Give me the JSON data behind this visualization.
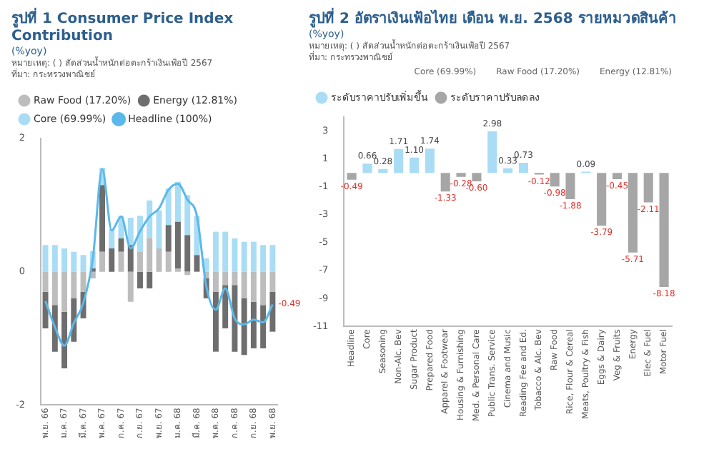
{
  "chart_data": [
    {
      "type": "bar",
      "title": "รูปที่ 1 Consumer Price Index Contribution",
      "subtitle": "(%yoy)",
      "annotations": [
        "หมายเหตุ: ( ) สัดส่วนน้ำหนักต่อตะกร้าเงินเฟ้อปี 2567",
        "ที่มา: กระทรวงพาณิชย์"
      ],
      "categories": [
        "พ.ย. 66",
        null,
        "ม.ค. 67",
        null,
        "มี.ค. 67",
        null,
        "พ.ค. 67",
        null,
        "ก.ค. 67",
        null,
        "ก.ย. 67",
        null,
        "พ.ย. 67",
        null,
        "ม.ค. 68",
        null,
        "มี.ค. 68",
        null,
        "พ.ค. 68",
        null,
        "ก.ค. 68",
        null,
        "ก.ย. 68",
        null,
        "พ.ย. 68"
      ],
      "stacked": true,
      "legend": "top",
      "ylim": [
        -2,
        2
      ],
      "yticks": [
        -2,
        0,
        2
      ],
      "series": [
        {
          "name": "Raw Food (17.20%)",
          "color": "#bdbdbd",
          "values": [
            -0.3,
            -0.5,
            -0.6,
            -0.4,
            -0.3,
            -0.1,
            0.3,
            0.0,
            0.3,
            -0.45,
            0.3,
            0.5,
            0.35,
            0.3,
            0.05,
            -0.05,
            0.0,
            -0.1,
            -0.3,
            -0.2,
            -0.2,
            -0.4,
            -0.45,
            -0.5,
            -0.3
          ]
        },
        {
          "name": "Energy (12.81%)",
          "color": "#6e6e6e",
          "values": [
            -0.55,
            -0.7,
            -0.85,
            -0.65,
            -0.4,
            0.05,
            1.0,
            0.35,
            0.2,
            0.4,
            -0.25,
            -0.25,
            0.0,
            0.4,
            0.7,
            0.55,
            0.25,
            -0.3,
            -0.9,
            -0.65,
            -1.0,
            -0.85,
            -0.7,
            -0.65,
            -0.6
          ]
        },
        {
          "name": "Core (69.99%)",
          "color": "#a9dcf5",
          "values": [
            0.4,
            0.4,
            0.35,
            0.3,
            0.25,
            0.26,
            0.26,
            0.29,
            0.34,
            0.41,
            0.54,
            0.57,
            0.57,
            0.55,
            0.6,
            0.6,
            0.59,
            0.2,
            0.6,
            0.6,
            0.5,
            0.45,
            0.45,
            0.4,
            0.4
          ]
        },
        {
          "name": "Headline (100%)",
          "type": "line",
          "color": "#5bb8ea",
          "values": [
            -0.44,
            -0.83,
            -1.11,
            -0.77,
            -0.47,
            0.19,
            1.54,
            0.62,
            0.83,
            0.35,
            0.61,
            0.83,
            0.95,
            1.23,
            1.32,
            1.08,
            0.84,
            -0.22,
            -0.57,
            -0.25,
            -0.7,
            -0.79,
            -0.72,
            -0.76,
            -0.49
          ],
          "value_labels": [
            null,
            null,
            null,
            null,
            null,
            null,
            null,
            null,
            null,
            null,
            null,
            null,
            null,
            null,
            null,
            null,
            null,
            null,
            null,
            null,
            null,
            null,
            null,
            null,
            "-0.49"
          ]
        }
      ]
    },
    {
      "type": "bar",
      "title": "รูปที่ 2 อัตราเงินเฟ้อไทย เดือน พ.ย. 2568 รายหมวดสินค้า",
      "subtitle": "(%yoy)",
      "annotations": [
        "หมายเหตุ: ( ) สัดส่วนน้ำหนักต่อตะกร้าเงินเฟ้อปี 2567",
        "ที่มา: กระทรวงพาณิชย์",
        "Core (69.99%)",
        "Raw Food (17.20%)",
        "Energy (12.81%)"
      ],
      "categories": [
        "Headline",
        "Core",
        "Seasoning",
        "Non-Alc. Bev",
        "Sugar Product",
        "Prepared Food",
        "Apparel & Footwear",
        "Housing & Furnishing",
        "Med. & Personal Care",
        "Public Trans. Service",
        "Cinema and Music",
        "Reading Fee and Ed.",
        "Tobacco & Alc. Bev",
        "Raw Food",
        "Rice, Flour & Cereal",
        "Meats, Poultry & Fish",
        "Eggs & Dairy",
        "Veg & Fruits",
        "Energy",
        "Elec & Fuel",
        "Motor Fuel"
      ],
      "stacked": true,
      "legend": "top",
      "ylim": [
        -11,
        4
      ],
      "yticks": [
        3,
        1,
        -1,
        -3,
        -5,
        -7,
        -9,
        -11
      ],
      "series": [
        {
          "name": "ระดับราคาปรับเพิ่มขึ้น",
          "color": "#a9dcf5",
          "values": [
            null,
            0.66,
            0.28,
            1.71,
            1.1,
            1.74,
            null,
            null,
            null,
            2.98,
            0.33,
            0.73,
            null,
            null,
            null,
            0.09,
            null,
            null,
            null,
            null,
            null
          ],
          "value_labels": [
            null,
            "0.66",
            "0.28",
            "1.71",
            "1.10",
            "1.74",
            null,
            null,
            null,
            "2.98",
            "0.33",
            "0.73",
            null,
            null,
            null,
            "0.09",
            null,
            null,
            null,
            null,
            null
          ]
        },
        {
          "name": "ระดับราคาปรับลดลง",
          "color": "#a6a6a6",
          "values": [
            -0.49,
            null,
            null,
            null,
            null,
            null,
            -1.33,
            -0.28,
            -0.6,
            null,
            null,
            null,
            -0.12,
            -0.98,
            -1.88,
            null,
            -3.79,
            -0.45,
            -5.71,
            -2.11,
            -8.18
          ],
          "value_labels": [
            "-0.49",
            null,
            null,
            null,
            null,
            null,
            "-1.33",
            "-0.28",
            "-0.60",
            null,
            null,
            null,
            "-0.12",
            "-0.98",
            "-1.88",
            null,
            "-3.79",
            "-0.45",
            "-5.71",
            "-2.11",
            "-8.18"
          ]
        }
      ]
    }
  ]
}
